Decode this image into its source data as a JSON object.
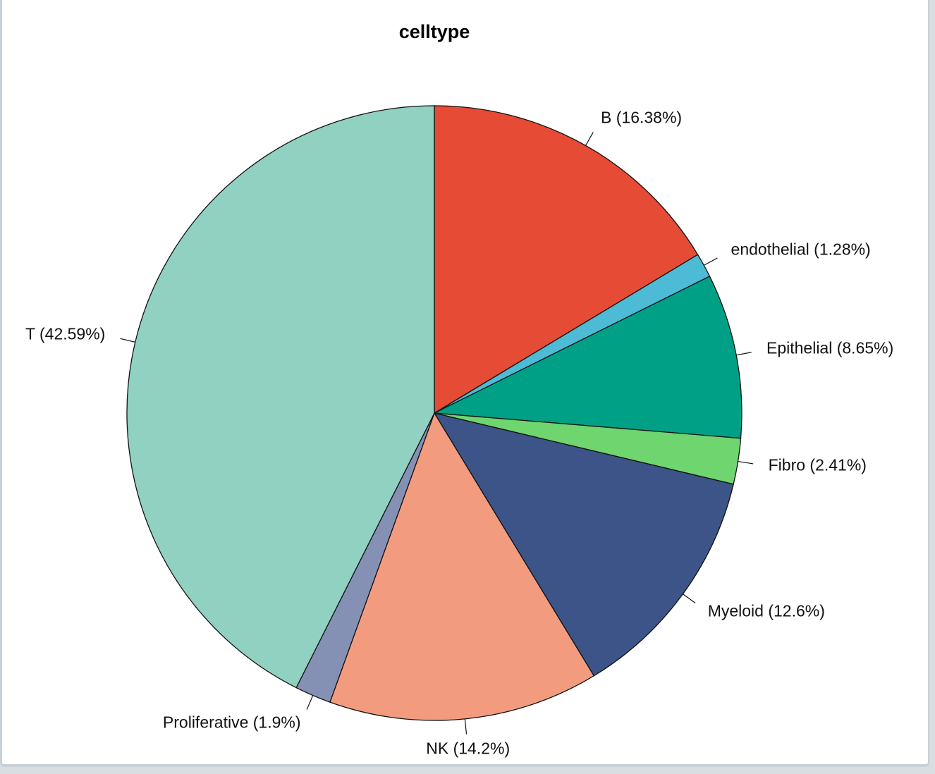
{
  "chart_data": {
    "type": "pie",
    "title": "celltype",
    "start_angle_deg": 90,
    "direction": "clockwise",
    "slices": [
      {
        "name": "B",
        "value": 16.38,
        "label": "B (16.38%)",
        "color": "#E64B35"
      },
      {
        "name": "endothelial",
        "value": 1.28,
        "label": "endothelial (1.28%)",
        "color": "#4DBBD5"
      },
      {
        "name": "Epithelial",
        "value": 8.65,
        "label": "Epithelial (8.65%)",
        "color": "#00A087"
      },
      {
        "name": "Fibro",
        "value": 2.41,
        "label": "Fibro (2.41%)",
        "color": "#6FD56F"
      },
      {
        "name": "Myeloid",
        "value": 12.6,
        "label": "Myeloid (12.6%)",
        "color": "#3C5488"
      },
      {
        "name": "NK",
        "value": 14.2,
        "label": "NK (14.2%)",
        "color": "#F39B7F"
      },
      {
        "name": "Proliferative",
        "value": 1.9,
        "label": "Proliferative (1.9%)",
        "color": "#8491B4"
      },
      {
        "name": "T",
        "value": 42.59,
        "label": "T (42.59%)",
        "color": "#91D1C2"
      }
    ]
  }
}
